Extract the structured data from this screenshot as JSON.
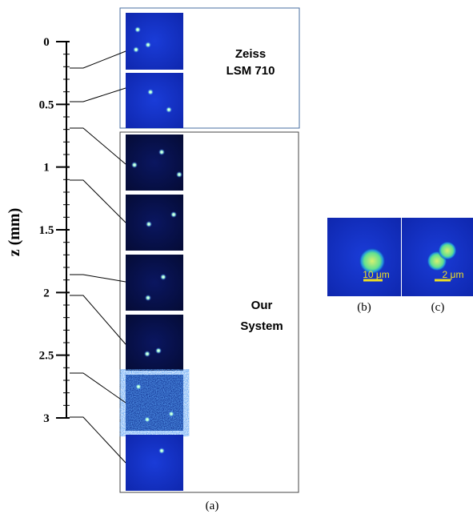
{
  "ruler": {
    "label": "z (mm)",
    "ticks": [
      "0",
      "0.5",
      "1",
      "1.5",
      "2",
      "2.5",
      "3"
    ]
  },
  "panels": {
    "zeiss": {
      "label_lines": [
        "Zeiss",
        "LSM 710"
      ]
    },
    "our_system": {
      "label_lines": [
        "Our",
        "System"
      ]
    }
  },
  "insets": [
    {
      "scale_bar": "10 μm",
      "caption": "(b)"
    },
    {
      "scale_bar": "2 μm",
      "caption": "(c)"
    }
  ],
  "caption": "(a)"
}
